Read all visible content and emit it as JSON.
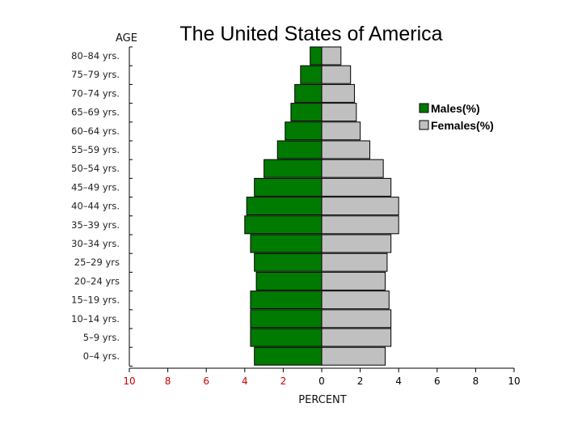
{
  "chart_data": {
    "type": "bar",
    "orientation": "horizontal",
    "title": "The United States of America",
    "ylabel": "AGE",
    "xlabel": "PERCENT",
    "categories": [
      "80–84 yrs.",
      "75–79 yrs.",
      "70–74 yrs.",
      "65–69 yrs.",
      "60–64 yrs.",
      "55–59 yrs.",
      "50–54 yrs.",
      "45–49 yrs.",
      "40–44 yrs.",
      "35–39 yrs.",
      "30–34 yrs.",
      "25–29 yrs",
      "20–24 yrs",
      "15–19 yrs.",
      "10–14 yrs.",
      "5–9 yrs.",
      "0–4 yrs."
    ],
    "series": [
      {
        "name": "Males(%)",
        "color": "#007a00",
        "side": "left",
        "values": [
          0.6,
          1.1,
          1.4,
          1.6,
          1.9,
          2.3,
          3.0,
          3.5,
          3.9,
          4.0,
          3.7,
          3.5,
          3.4,
          3.7,
          3.7,
          3.7,
          3.5
        ]
      },
      {
        "name": "Females(%)",
        "color": "#c0c0c0",
        "side": "right",
        "values": [
          1.0,
          1.5,
          1.7,
          1.8,
          2.0,
          2.5,
          3.2,
          3.6,
          4.0,
          4.0,
          3.6,
          3.4,
          3.3,
          3.5,
          3.6,
          3.6,
          3.3
        ]
      }
    ],
    "xlim": [
      -10,
      10
    ],
    "x_ticks": [
      {
        "value": -10,
        "label": "10"
      },
      {
        "value": -8,
        "label": "8"
      },
      {
        "value": -6,
        "label": "6"
      },
      {
        "value": -4,
        "label": "4"
      },
      {
        "value": -2,
        "label": "2"
      },
      {
        "value": 0,
        "label": "0"
      },
      {
        "value": 2,
        "label": "2"
      },
      {
        "value": 4,
        "label": "4"
      },
      {
        "value": 6,
        "label": "6"
      },
      {
        "value": 8,
        "label": "8"
      },
      {
        "value": 10,
        "label": "10"
      }
    ],
    "tick_colors": {
      "left": "#cc0000",
      "right": "#000000"
    },
    "legend": {
      "position": "right",
      "entries": [
        "Males(%)",
        "Females(%)"
      ]
    },
    "grid": false
  }
}
